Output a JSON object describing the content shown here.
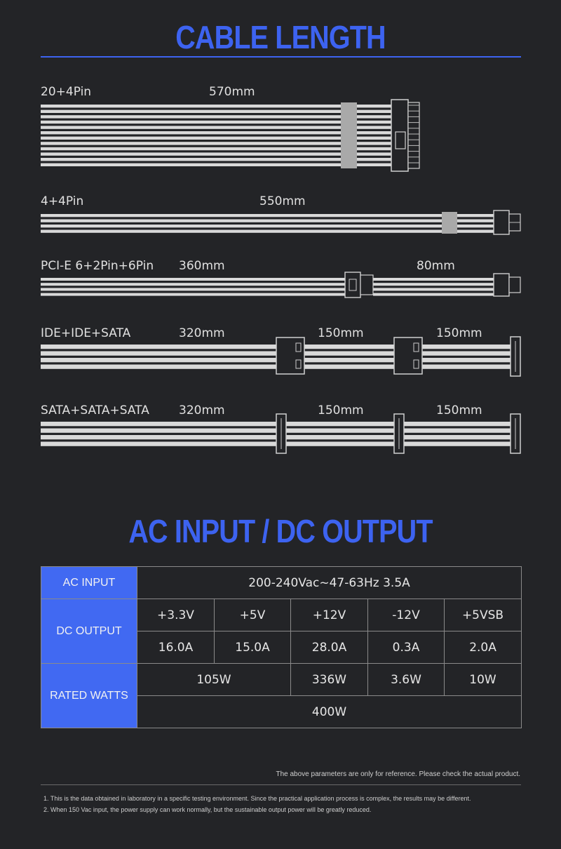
{
  "titles": {
    "cable_length": "CABLE LENGTH",
    "ac_dc": "AC INPUT / DC OUTPUT"
  },
  "cables": [
    {
      "name": "20+4Pin",
      "lengths": [
        "570mm"
      ]
    },
    {
      "name": "4+4Pin",
      "lengths": [
        "550mm"
      ]
    },
    {
      "name": "PCI-E 6+2Pin+6Pin",
      "lengths": [
        "360mm",
        "80mm"
      ]
    },
    {
      "name": "IDE+IDE+SATA",
      "lengths": [
        "320mm",
        "150mm",
        "150mm"
      ]
    },
    {
      "name": "SATA+SATA+SATA",
      "lengths": [
        "320mm",
        "150mm",
        "150mm"
      ]
    }
  ],
  "table": {
    "ac_input_label": "AC INPUT",
    "ac_input_value": "200-240Vac~47-63Hz  3.5A",
    "dc_output_label": "DC OUTPUT",
    "voltages": [
      "+3.3V",
      "+5V",
      "+12V",
      "-12V",
      "+5VSB"
    ],
    "currents": [
      "16.0A",
      "15.0A",
      "28.0A",
      "0.3A",
      "2.0A"
    ],
    "rated_watts_label": "RATED WATTS",
    "watts": [
      "105W",
      "336W",
      "3.6W",
      "10W"
    ],
    "total_watts": "400W"
  },
  "notes": {
    "reference": "The above parameters are only for reference. Please check the actual product.",
    "footnote_1": "1. This is the data obtained in laboratory in a specific testing environment. Since the practical application process is complex, the results may be different.",
    "footnote_2": "2. When 150 Vac input, the power supply can work normally, but the sustainable output power will be greatly reduced."
  },
  "colors": {
    "accent": "#3d63f0",
    "table_header": "#4169f2",
    "background": "#232427"
  }
}
